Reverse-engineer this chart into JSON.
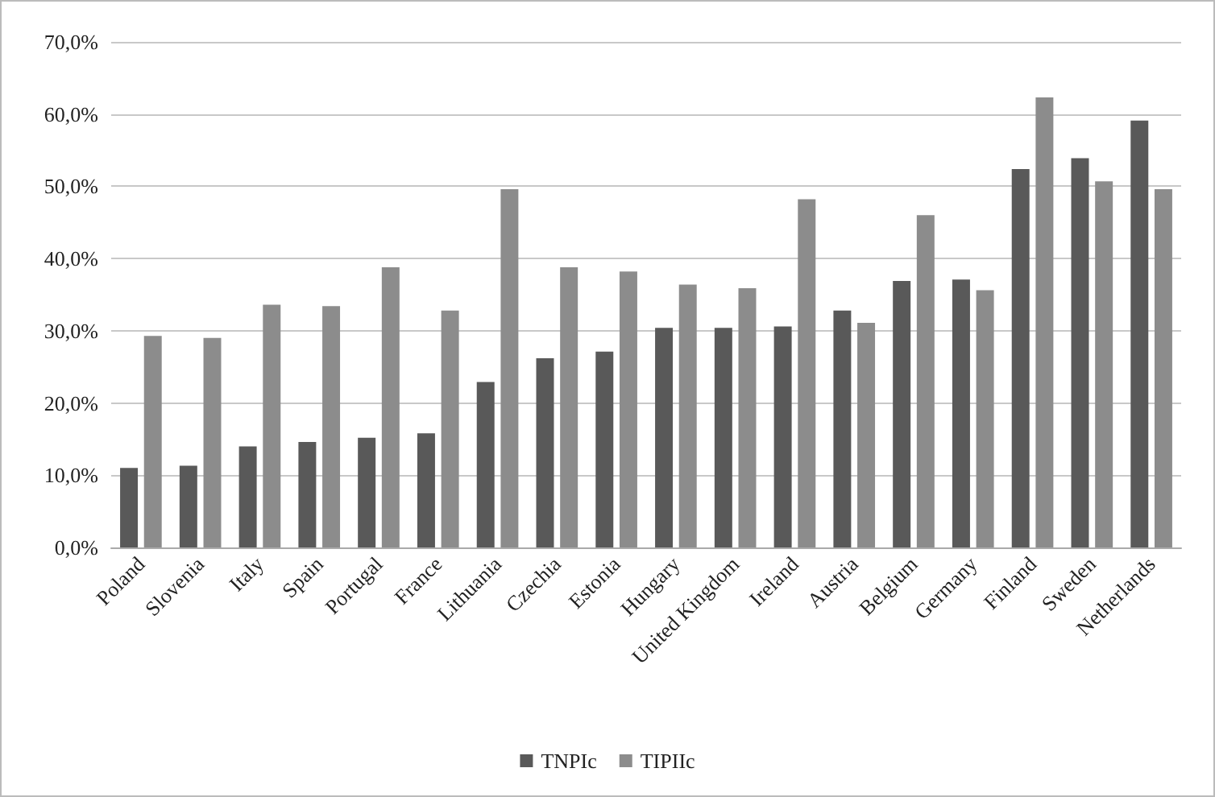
{
  "chart_data": {
    "type": "bar",
    "categories": [
      "Poland",
      "Slovenia",
      "Italy",
      "Spain",
      "Portugal",
      "France",
      "Lithuania",
      "Czechia",
      "Estonia",
      "Hungary",
      "United Kingdom",
      "Ireland",
      "Austria",
      "Belgium",
      "Germany",
      "Finland",
      "Sweden",
      "Netherlands"
    ],
    "series": [
      {
        "name": "TNPIc",
        "color": "#595959",
        "values": [
          11.0,
          11.3,
          14.0,
          14.6,
          15.2,
          15.8,
          22.9,
          26.2,
          27.1,
          30.4,
          30.4,
          30.6,
          32.8,
          36.9,
          37.1,
          52.4,
          53.9,
          59.1
        ]
      },
      {
        "name": "TIPIIc",
        "color": "#8c8c8c",
        "values": [
          29.3,
          29.0,
          33.6,
          33.4,
          38.8,
          32.8,
          49.6,
          38.8,
          38.2,
          36.4,
          35.9,
          48.2,
          31.1,
          46.0,
          35.6,
          62.3,
          50.7,
          49.6
        ]
      }
    ],
    "ylim": [
      0,
      70
    ],
    "yticks": [
      {
        "value": 0,
        "label": "0,0%"
      },
      {
        "value": 10,
        "label": "10,0%"
      },
      {
        "value": 20,
        "label": "20,0%"
      },
      {
        "value": 30,
        "label": "30,0%"
      },
      {
        "value": 40,
        "label": "40,0%"
      },
      {
        "value": 50,
        "label": "50,0%"
      },
      {
        "value": 60,
        "label": "60,0%"
      },
      {
        "value": 70,
        "label": "70,0%"
      }
    ],
    "grid": "y",
    "legend": "bottom"
  }
}
